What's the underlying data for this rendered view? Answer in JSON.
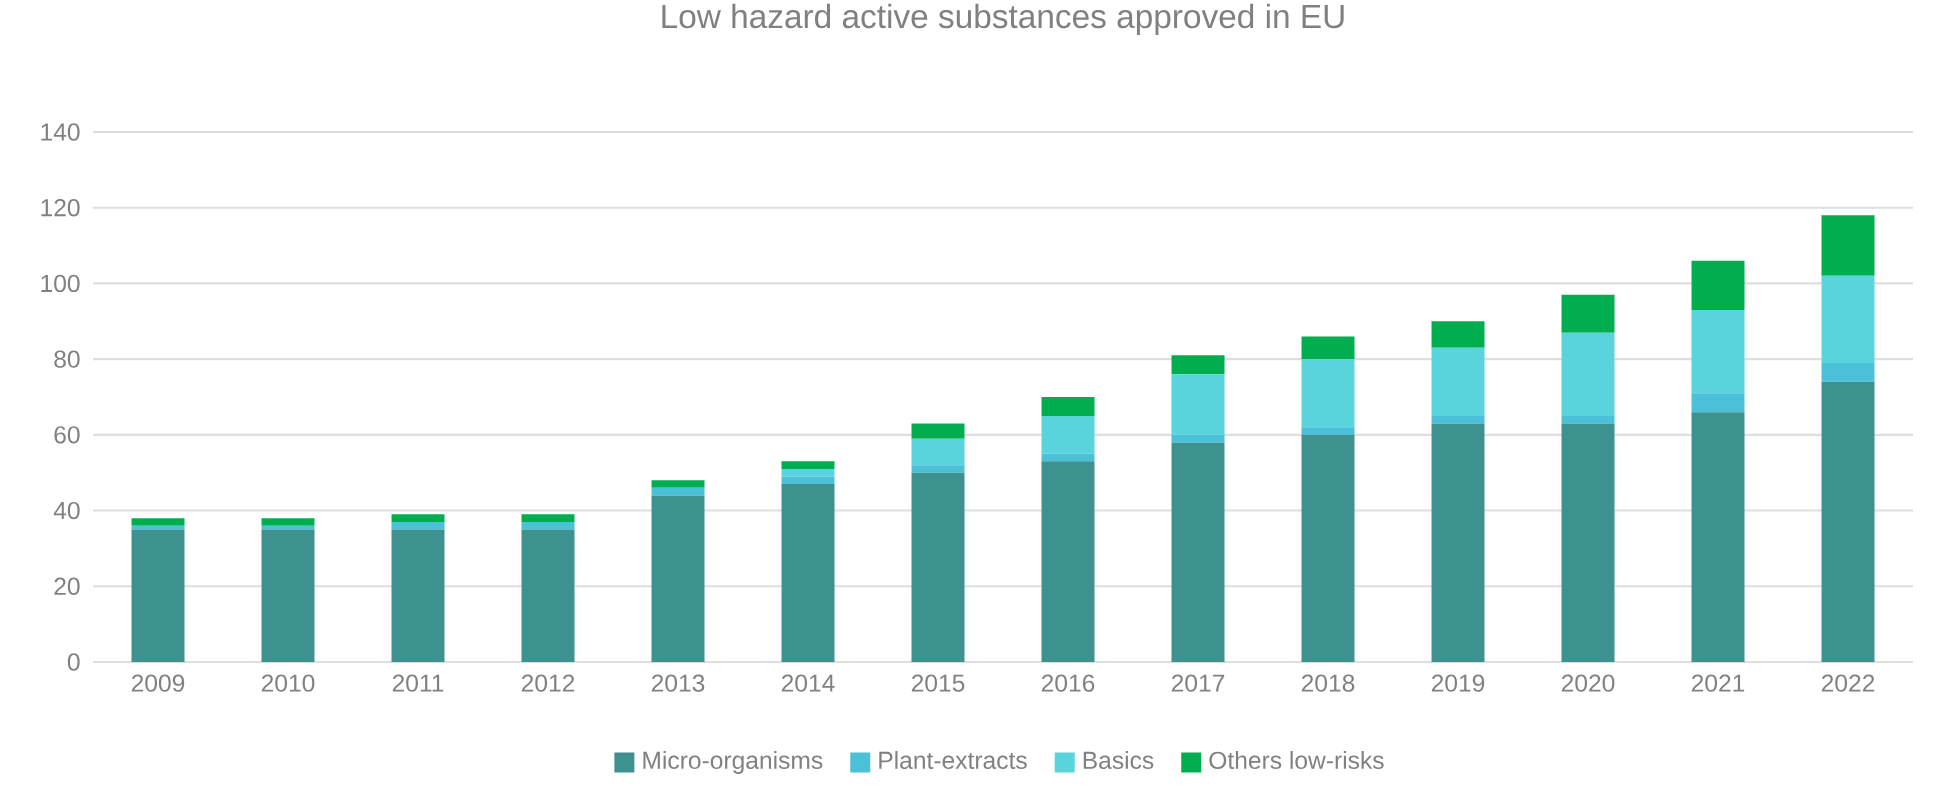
{
  "chart_data": {
    "type": "bar",
    "stacked": true,
    "title": "Low hazard active substances approved in EU",
    "categories": [
      "2009",
      "2010",
      "2011",
      "2012",
      "2013",
      "2014",
      "2015",
      "2016",
      "2017",
      "2018",
      "2019",
      "2020",
      "2021",
      "2022"
    ],
    "series": [
      {
        "name": "Micro-organisms",
        "color": "#3d918f",
        "values": [
          35,
          35,
          35,
          35,
          44,
          47,
          50,
          53,
          58,
          60,
          63,
          63,
          66,
          74
        ]
      },
      {
        "name": "Plant-extracts",
        "color": "#4bc1d9",
        "values": [
          1,
          1,
          2,
          2,
          2,
          2,
          2,
          2,
          2,
          2,
          2,
          2,
          5,
          5
        ]
      },
      {
        "name": "Basics",
        "color": "#5ad4dc",
        "values": [
          0,
          0,
          0,
          0,
          0,
          2,
          7,
          10,
          16,
          18,
          18,
          22,
          22,
          23
        ]
      },
      {
        "name": "Others low-risks",
        "color": "#00ae4f",
        "values": [
          2,
          2,
          2,
          2,
          2,
          2,
          4,
          5,
          5,
          6,
          7,
          10,
          13,
          16
        ]
      }
    ],
    "ylim": [
      0,
      140
    ],
    "yticks": [
      0,
      20,
      40,
      60,
      80,
      100,
      120,
      140
    ],
    "grid": "y",
    "legend": "bottom"
  }
}
